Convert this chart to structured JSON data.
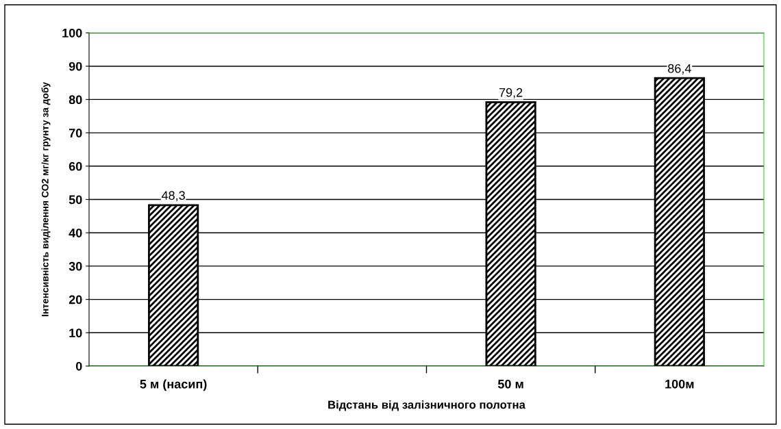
{
  "chart_data": {
    "type": "bar",
    "xlabel": "Відстань від залізничного полотна",
    "ylabel": "Інтенсивність виділення СО2 мг/кг грунту за добу",
    "categories": [
      "5 м (насип)",
      null,
      "50 м",
      "100м"
    ],
    "values": [
      48.3,
      null,
      79.2,
      86.4
    ],
    "value_labels": [
      "48,3",
      null,
      "79,2",
      "86,4"
    ],
    "color": "#000000",
    "ylim": [
      0,
      100
    ],
    "yticks": [
      0,
      10,
      20,
      30,
      40,
      50,
      60,
      70,
      80,
      90,
      100
    ],
    "grid": "y",
    "legend": false
  }
}
